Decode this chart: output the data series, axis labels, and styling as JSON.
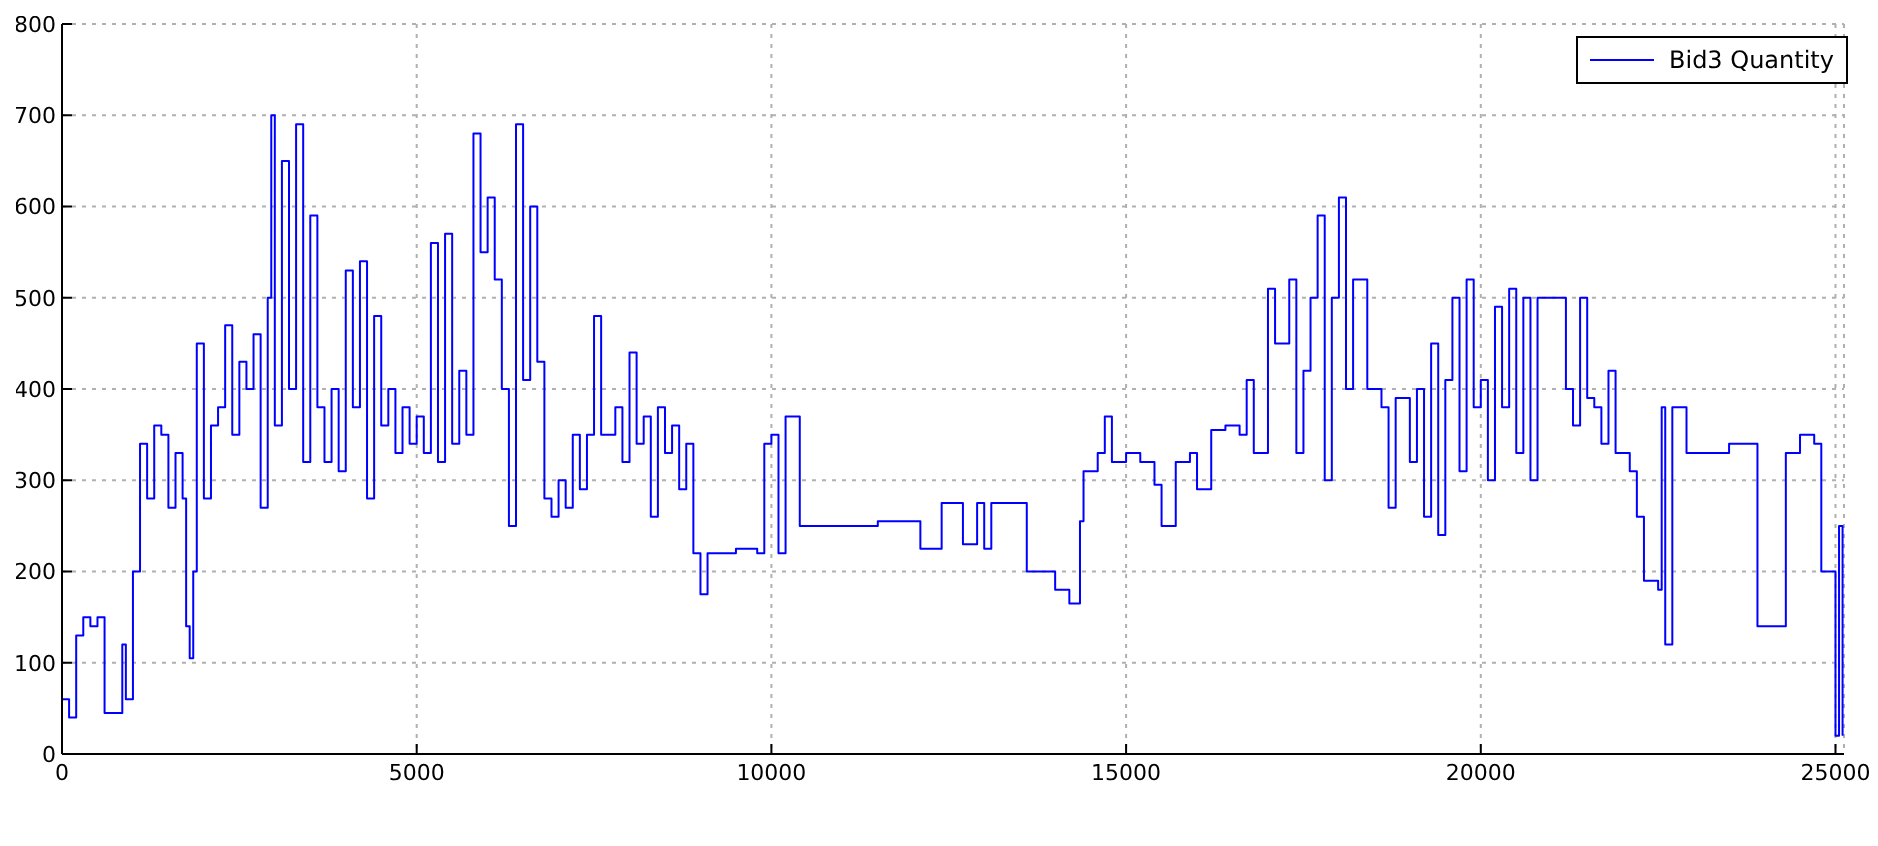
{
  "chart_data": {
    "type": "step",
    "xlim": [
      0,
      25120
    ],
    "ylim": [
      0,
      800
    ],
    "xticks": [
      0,
      5000,
      10000,
      15000,
      20000,
      25000
    ],
    "yticks": [
      0,
      100,
      200,
      300,
      400,
      500,
      600,
      700,
      800
    ],
    "grid": true,
    "legend": "top right",
    "line_style": "solid",
    "marker": "none",
    "x": [
      0,
      100,
      200,
      300,
      400,
      500,
      600,
      800,
      850,
      900,
      1000,
      1100,
      1200,
      1300,
      1400,
      1500,
      1600,
      1700,
      1750,
      1800,
      1850,
      1900,
      2000,
      2100,
      2200,
      2300,
      2400,
      2500,
      2600,
      2700,
      2800,
      2900,
      2950,
      3000,
      3100,
      3200,
      3300,
      3400,
      3500,
      3600,
      3700,
      3800,
      3900,
      4000,
      4100,
      4200,
      4300,
      4400,
      4500,
      4600,
      4700,
      4800,
      4900,
      5000,
      5100,
      5200,
      5300,
      5400,
      5500,
      5600,
      5700,
      5800,
      5900,
      6000,
      6100,
      6200,
      6300,
      6400,
      6500,
      6600,
      6700,
      6800,
      6900,
      7000,
      7100,
      7200,
      7300,
      7400,
      7500,
      7600,
      7800,
      7900,
      8000,
      8100,
      8200,
      8300,
      8400,
      8500,
      8600,
      8700,
      8800,
      8900,
      9000,
      9100,
      9500,
      9800,
      9900,
      10000,
      10100,
      10200,
      10400,
      11500,
      12000,
      12100,
      12400,
      12600,
      12700,
      12900,
      13000,
      13100,
      13500,
      13600,
      14000,
      14200,
      14350,
      14400,
      14600,
      14700,
      14800,
      15000,
      15200,
      15400,
      15500,
      15700,
      15900,
      16000,
      16200,
      16400,
      16600,
      16700,
      16800,
      17000,
      17100,
      17300,
      17400,
      17500,
      17600,
      17700,
      17800,
      17900,
      18000,
      18100,
      18200,
      18400,
      18600,
      18700,
      18800,
      19000,
      19100,
      19200,
      19300,
      19400,
      19500,
      19600,
      19700,
      19800,
      19900,
      20000,
      20100,
      20200,
      20300,
      20400,
      20500,
      20600,
      20700,
      20800,
      21000,
      21200,
      21300,
      21400,
      21500,
      21600,
      21700,
      21800,
      21900,
      22100,
      22200,
      22300,
      22500,
      22550,
      22600,
      22700,
      22900,
      23500,
      23900,
      24300,
      24500,
      24700,
      24800,
      25000,
      25050,
      25100
    ],
    "series": [
      {
        "name": "Bid3 Quantity",
        "color": "#0000ff",
        "values": [
          60,
          40,
          130,
          150,
          140,
          150,
          45,
          45,
          120,
          60,
          200,
          340,
          280,
          360,
          350,
          270,
          330,
          280,
          140,
          105,
          200,
          450,
          280,
          360,
          380,
          470,
          350,
          430,
          400,
          460,
          270,
          500,
          700,
          360,
          650,
          400,
          690,
          320,
          590,
          380,
          320,
          400,
          310,
          530,
          380,
          540,
          280,
          480,
          360,
          400,
          330,
          380,
          340,
          370,
          330,
          560,
          320,
          570,
          340,
          420,
          350,
          680,
          550,
          610,
          520,
          400,
          250,
          690,
          410,
          600,
          430,
          280,
          260,
          300,
          270,
          350,
          290,
          350,
          480,
          350,
          380,
          320,
          440,
          340,
          370,
          260,
          380,
          330,
          360,
          290,
          340,
          220,
          175,
          220,
          225,
          220,
          340,
          350,
          220,
          370,
          250,
          255,
          255,
          225,
          275,
          275,
          230,
          275,
          225,
          275,
          275,
          200,
          180,
          165,
          255,
          310,
          330,
          370,
          320,
          330,
          320,
          295,
          250,
          320,
          330,
          290,
          355,
          360,
          350,
          410,
          330,
          510,
          450,
          520,
          330,
          420,
          500,
          590,
          300,
          500,
          610,
          400,
          520,
          400,
          380,
          270,
          390,
          320,
          400,
          260,
          450,
          240,
          410,
          500,
          310,
          520,
          380,
          410,
          300,
          490,
          380,
          510,
          330,
          500,
          300,
          500,
          500,
          400,
          360,
          500,
          390,
          380,
          340,
          420,
          330,
          310,
          260,
          190,
          180,
          380,
          120,
          380,
          330,
          340,
          140,
          330,
          350,
          340,
          200,
          20,
          250,
          20
        ]
      }
    ]
  }
}
